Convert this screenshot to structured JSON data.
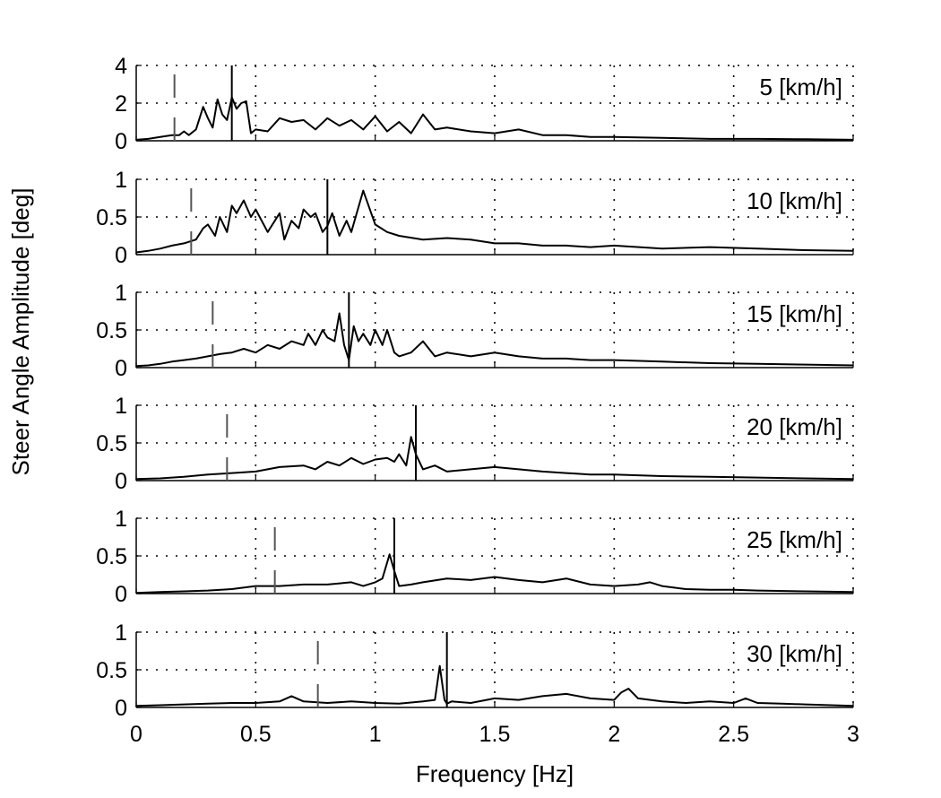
{
  "chart_data": {
    "type": "line",
    "xlabel": "Frequency [Hz]",
    "ylabel": "Steer Angle Amplitude [deg]",
    "xlim": [
      0,
      3
    ],
    "x_ticks": [
      0,
      0.5,
      1,
      1.5,
      2,
      2.5,
      3
    ],
    "x_tick_labels": [
      "0",
      "0.5",
      "1",
      "1.5",
      "2",
      "2.5",
      "3"
    ],
    "grid": "dotted",
    "series_color": "#000000",
    "dashed_marker_color": "#555555",
    "panels": [
      {
        "label": "5 [km/h]",
        "ylim": [
          0,
          4
        ],
        "y_ticks": [
          0,
          2,
          4
        ],
        "y_tick_labels": [
          "0",
          "2",
          "4"
        ],
        "solid_marker_x": 0.4,
        "dashed_marker_x": 0.16,
        "x": [
          0,
          0.05,
          0.1,
          0.15,
          0.18,
          0.2,
          0.22,
          0.25,
          0.28,
          0.3,
          0.32,
          0.34,
          0.36,
          0.38,
          0.4,
          0.42,
          0.44,
          0.46,
          0.48,
          0.5,
          0.55,
          0.6,
          0.65,
          0.7,
          0.75,
          0.8,
          0.85,
          0.9,
          0.95,
          1.0,
          1.05,
          1.1,
          1.15,
          1.2,
          1.25,
          1.3,
          1.4,
          1.5,
          1.6,
          1.7,
          1.8,
          1.9,
          2.0,
          2.2,
          2.4,
          2.6,
          2.8,
          3.0
        ],
        "y": [
          0.05,
          0.1,
          0.2,
          0.3,
          0.3,
          0.5,
          0.3,
          0.6,
          1.8,
          1.2,
          0.7,
          2.2,
          1.4,
          1.1,
          2.3,
          1.7,
          2.0,
          2.1,
          0.4,
          0.6,
          0.5,
          1.2,
          1.0,
          1.1,
          0.6,
          1.2,
          0.8,
          1.1,
          0.6,
          1.3,
          0.5,
          1.0,
          0.4,
          1.4,
          0.6,
          0.7,
          0.5,
          0.4,
          0.6,
          0.3,
          0.3,
          0.2,
          0.2,
          0.15,
          0.1,
          0.1,
          0.08,
          0.05
        ]
      },
      {
        "label": "10 [km/h]",
        "ylim": [
          0,
          1
        ],
        "y_ticks": [
          0,
          0.5,
          1
        ],
        "y_tick_labels": [
          "0",
          "0.5",
          "1"
        ],
        "solid_marker_x": 0.8,
        "dashed_marker_x": 0.23,
        "x": [
          0,
          0.05,
          0.1,
          0.15,
          0.2,
          0.25,
          0.28,
          0.3,
          0.33,
          0.35,
          0.38,
          0.4,
          0.42,
          0.45,
          0.48,
          0.5,
          0.55,
          0.6,
          0.62,
          0.65,
          0.68,
          0.7,
          0.73,
          0.75,
          0.78,
          0.8,
          0.82,
          0.85,
          0.88,
          0.9,
          0.95,
          1.0,
          1.05,
          1.1,
          1.2,
          1.3,
          1.4,
          1.5,
          1.6,
          1.7,
          1.8,
          1.9,
          2.0,
          2.2,
          2.4,
          2.6,
          2.8,
          3.0
        ],
        "y": [
          0.03,
          0.05,
          0.08,
          0.12,
          0.15,
          0.2,
          0.35,
          0.4,
          0.25,
          0.5,
          0.3,
          0.65,
          0.55,
          0.72,
          0.5,
          0.6,
          0.3,
          0.55,
          0.2,
          0.45,
          0.35,
          0.6,
          0.5,
          0.55,
          0.3,
          0.38,
          0.55,
          0.25,
          0.45,
          0.3,
          0.85,
          0.4,
          0.3,
          0.25,
          0.2,
          0.22,
          0.2,
          0.15,
          0.15,
          0.12,
          0.12,
          0.1,
          0.12,
          0.08,
          0.1,
          0.08,
          0.06,
          0.05
        ]
      },
      {
        "label": "15 [km/h]",
        "ylim": [
          0,
          1
        ],
        "y_ticks": [
          0,
          0.5,
          1
        ],
        "y_tick_labels": [
          "0",
          "0.5",
          "1"
        ],
        "solid_marker_x": 0.89,
        "dashed_marker_x": 0.32,
        "x": [
          0,
          0.05,
          0.1,
          0.15,
          0.2,
          0.25,
          0.3,
          0.35,
          0.4,
          0.45,
          0.5,
          0.55,
          0.6,
          0.65,
          0.7,
          0.72,
          0.75,
          0.78,
          0.8,
          0.83,
          0.85,
          0.87,
          0.89,
          0.91,
          0.93,
          0.95,
          0.98,
          1.0,
          1.03,
          1.05,
          1.08,
          1.1,
          1.15,
          1.2,
          1.25,
          1.3,
          1.4,
          1.5,
          1.6,
          1.7,
          1.8,
          1.9,
          2.0,
          2.2,
          2.4,
          2.6,
          2.8,
          3.0
        ],
        "y": [
          0.02,
          0.03,
          0.05,
          0.08,
          0.1,
          0.12,
          0.15,
          0.18,
          0.2,
          0.25,
          0.2,
          0.3,
          0.25,
          0.35,
          0.3,
          0.45,
          0.3,
          0.5,
          0.4,
          0.35,
          0.72,
          0.3,
          0.1,
          0.55,
          0.35,
          0.45,
          0.3,
          0.5,
          0.3,
          0.5,
          0.2,
          0.15,
          0.2,
          0.35,
          0.15,
          0.2,
          0.15,
          0.2,
          0.15,
          0.12,
          0.12,
          0.1,
          0.1,
          0.08,
          0.06,
          0.05,
          0.04,
          0.03
        ]
      },
      {
        "label": "20 [km/h]",
        "ylim": [
          0,
          1
        ],
        "y_ticks": [
          0,
          0.5,
          1
        ],
        "y_tick_labels": [
          "0",
          "0.5",
          "1"
        ],
        "solid_marker_x": 1.17,
        "dashed_marker_x": 0.38,
        "x": [
          0,
          0.1,
          0.2,
          0.3,
          0.4,
          0.5,
          0.55,
          0.6,
          0.7,
          0.75,
          0.8,
          0.85,
          0.9,
          0.95,
          1.0,
          1.05,
          1.08,
          1.1,
          1.13,
          1.15,
          1.17,
          1.2,
          1.25,
          1.3,
          1.4,
          1.5,
          1.6,
          1.7,
          1.8,
          1.9,
          2.0,
          2.2,
          2.4,
          2.6,
          2.8,
          3.0
        ],
        "y": [
          0.02,
          0.03,
          0.05,
          0.08,
          0.1,
          0.12,
          0.15,
          0.18,
          0.2,
          0.15,
          0.25,
          0.2,
          0.3,
          0.22,
          0.28,
          0.3,
          0.25,
          0.35,
          0.2,
          0.58,
          0.35,
          0.15,
          0.2,
          0.12,
          0.15,
          0.18,
          0.15,
          0.12,
          0.1,
          0.08,
          0.08,
          0.06,
          0.05,
          0.04,
          0.03,
          0.02
        ]
      },
      {
        "label": "25 [km/h]",
        "ylim": [
          0,
          1
        ],
        "y_ticks": [
          0,
          0.5,
          1
        ],
        "y_tick_labels": [
          "0",
          "0.5",
          "1"
        ],
        "solid_marker_x": 1.08,
        "dashed_marker_x": 0.58,
        "x": [
          0,
          0.1,
          0.2,
          0.3,
          0.4,
          0.5,
          0.6,
          0.7,
          0.8,
          0.9,
          0.95,
          1.0,
          1.03,
          1.06,
          1.08,
          1.1,
          1.15,
          1.2,
          1.3,
          1.4,
          1.5,
          1.6,
          1.7,
          1.8,
          1.9,
          2.0,
          2.1,
          2.15,
          2.2,
          2.3,
          2.4,
          2.5,
          2.6,
          2.8,
          3.0
        ],
        "y": [
          0.01,
          0.02,
          0.03,
          0.04,
          0.06,
          0.1,
          0.1,
          0.12,
          0.12,
          0.15,
          0.1,
          0.15,
          0.2,
          0.52,
          0.3,
          0.1,
          0.12,
          0.15,
          0.2,
          0.18,
          0.22,
          0.18,
          0.15,
          0.2,
          0.12,
          0.1,
          0.12,
          0.15,
          0.1,
          0.06,
          0.05,
          0.05,
          0.04,
          0.03,
          0.02
        ]
      },
      {
        "label": "30 [km/h]",
        "ylim": [
          0,
          1
        ],
        "y_ticks": [
          0,
          0.5,
          1
        ],
        "y_tick_labels": [
          "0",
          "0.5",
          "1"
        ],
        "solid_marker_x": 1.3,
        "dashed_marker_x": 0.76,
        "x": [
          0,
          0.1,
          0.2,
          0.3,
          0.4,
          0.5,
          0.6,
          0.65,
          0.7,
          0.8,
          0.9,
          1.0,
          1.1,
          1.2,
          1.25,
          1.27,
          1.29,
          1.3,
          1.32,
          1.4,
          1.5,
          1.6,
          1.7,
          1.8,
          1.9,
          2.0,
          2.03,
          2.06,
          2.1,
          2.2,
          2.3,
          2.4,
          2.5,
          2.55,
          2.6,
          2.7,
          2.8,
          3.0
        ],
        "y": [
          0.02,
          0.03,
          0.04,
          0.05,
          0.06,
          0.06,
          0.08,
          0.15,
          0.08,
          0.06,
          0.08,
          0.06,
          0.05,
          0.08,
          0.1,
          0.55,
          0.1,
          0.05,
          0.08,
          0.06,
          0.12,
          0.1,
          0.15,
          0.18,
          0.12,
          0.1,
          0.2,
          0.25,
          0.12,
          0.08,
          0.06,
          0.08,
          0.06,
          0.12,
          0.06,
          0.05,
          0.04,
          0.02
        ]
      }
    ]
  }
}
